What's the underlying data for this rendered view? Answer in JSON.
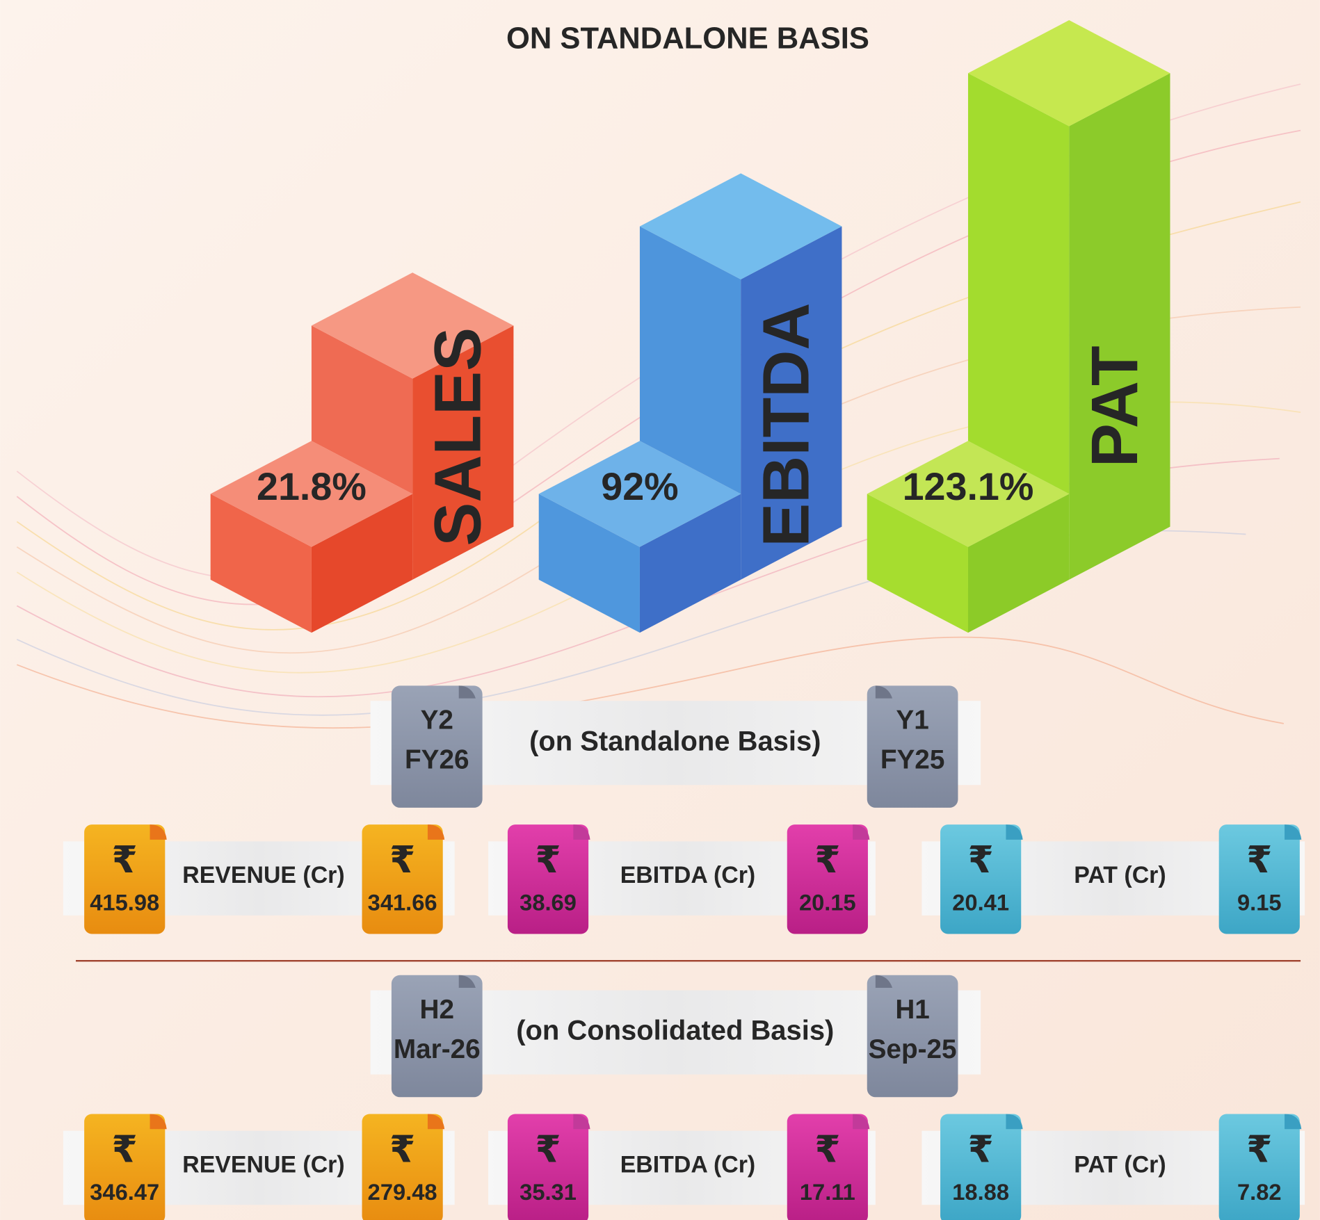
{
  "title": "ON STANDALONE BASIS",
  "bars": [
    {
      "label": "SALES",
      "value": "21.8%"
    },
    {
      "label": "EBITDA",
      "value": "92%"
    },
    {
      "label": "PAT",
      "value": "123.1%"
    }
  ],
  "sections": [
    {
      "left_tag": [
        "Y2",
        "FY26"
      ],
      "caption": "(on Standalone Basis)",
      "right_tag": [
        "Y1",
        "FY25"
      ],
      "metrics": [
        {
          "currency": "₹",
          "label": "REVENUE (Cr)",
          "left": "415.98",
          "right": "341.66"
        },
        {
          "currency": "₹",
          "label": "EBITDA (Cr)",
          "left": "38.69",
          "right": "20.15"
        },
        {
          "currency": "₹",
          "label": "PAT (Cr)",
          "left": "20.41",
          "right": "9.15"
        }
      ]
    },
    {
      "left_tag": [
        "H2",
        "Mar-26"
      ],
      "caption": "(on Consolidated Basis)",
      "right_tag": [
        "H1",
        "Sep-25"
      ],
      "metrics": [
        {
          "currency": "₹",
          "label": "REVENUE (Cr)",
          "left": "346.47",
          "right": "279.48"
        },
        {
          "currency": "₹",
          "label": "EBITDA (Cr)",
          "left": "35.31",
          "right": "17.11"
        },
        {
          "currency": "₹",
          "label": "PAT (Cr)",
          "left": "18.88",
          "right": "7.82"
        }
      ]
    }
  ]
}
